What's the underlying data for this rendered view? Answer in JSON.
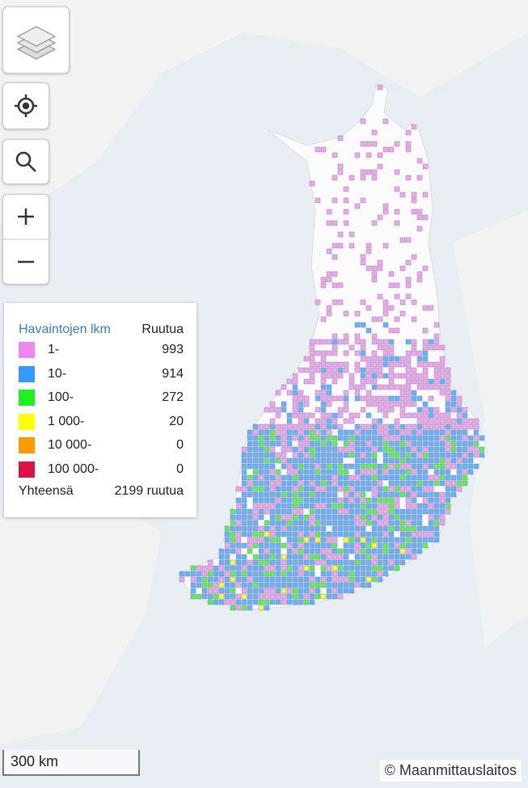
{
  "legend": {
    "title": "Havaintojen lkm",
    "column_header": "Ruutua",
    "rows": [
      {
        "label": "1-",
        "count": 993,
        "color": "#ee88ee"
      },
      {
        "label": "10-",
        "count": 914,
        "color": "#3399ff"
      },
      {
        "label": "100-",
        "count": 272,
        "color": "#22ee22"
      },
      {
        "label": "1 000-",
        "count": 20,
        "color": "#ffff00"
      },
      {
        "label": "10 000-",
        "count": 0,
        "color": "#ff9900"
      },
      {
        "label": "100 000-",
        "count": 0,
        "color": "#dd1144"
      }
    ],
    "total_label": "Yhteensä",
    "total_value": "2199 ruutua"
  },
  "scale_bar": "300 km",
  "attribution": "© Maanmittauslaitos"
}
